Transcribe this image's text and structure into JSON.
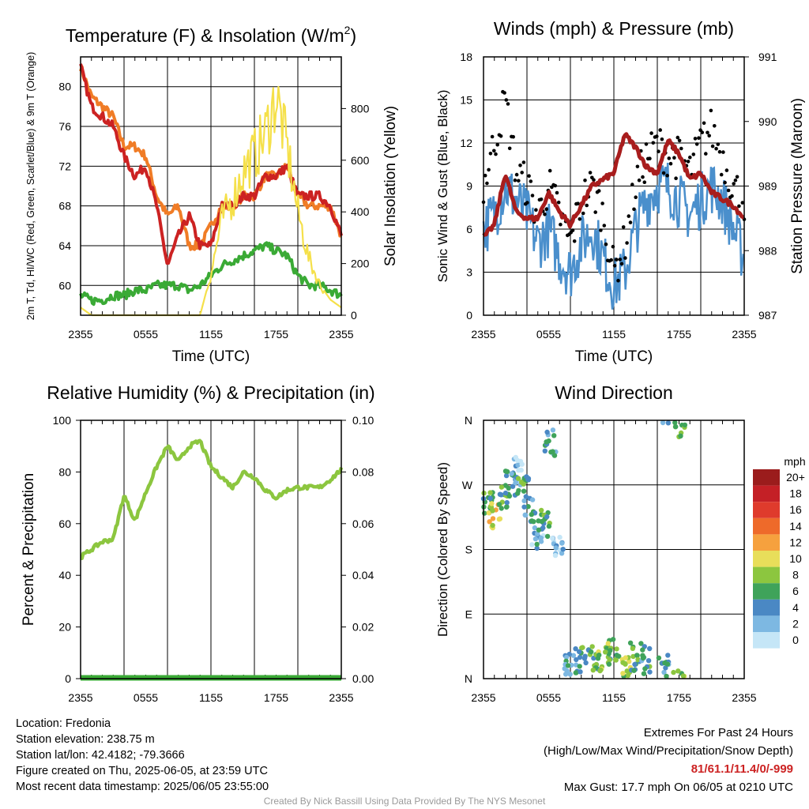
{
  "x_ticks": [
    "2355",
    "0555",
    "1155",
    "1755",
    "2355"
  ],
  "chart_data": [
    {
      "type": "line",
      "title": "Temperature (F) & Insolation (W/m²)",
      "xlabel": "Time (UTC)",
      "ylabel": "2m T, Td, HI/WC (Red, Green, Scarlet/Blue) & 9m T (Orange)",
      "ylabel2": "Solar Insolation (Yellow)",
      "ylim": [
        57,
        83
      ],
      "yticks": [
        60,
        64,
        68,
        72,
        76,
        80
      ],
      "ylim2": [
        0,
        1000
      ],
      "yticks2": [
        0,
        200,
        400,
        600,
        800
      ],
      "x": [
        0,
        1,
        2,
        3,
        4,
        5,
        6,
        7,
        8,
        9,
        10,
        11,
        12,
        13,
        14,
        15,
        16,
        17,
        18,
        19,
        20,
        21,
        22,
        23,
        24
      ],
      "series": [
        {
          "name": "9m T",
          "color": "#f07c26",
          "axis": "left",
          "values": [
            82,
            79,
            78,
            77,
            74,
            74,
            73,
            69,
            67,
            68,
            64,
            64,
            66,
            68,
            68,
            69,
            69,
            71,
            71,
            72,
            69,
            68,
            68,
            68,
            65
          ]
        },
        {
          "name": "2m T",
          "color": "#cc2222",
          "axis": "left",
          "values": [
            82,
            78,
            77,
            76,
            73,
            71,
            72,
            68,
            62,
            65,
            67,
            64,
            64,
            68,
            68,
            69,
            69,
            71,
            71,
            72,
            69,
            69,
            69,
            68,
            65
          ]
        },
        {
          "name": "Td",
          "color": "#3aaa35",
          "axis": "left",
          "values": [
            59,
            58.5,
            58.5,
            59,
            59,
            59.5,
            59.5,
            60,
            60,
            60,
            59.5,
            60,
            61,
            62,
            62.5,
            63,
            63.5,
            64,
            63.5,
            63,
            61,
            60,
            60,
            59.5,
            59
          ]
        },
        {
          "name": "Solar Insolation",
          "color": "#f5e04a",
          "axis": "right",
          "values": [
            30,
            0,
            0,
            0,
            0,
            0,
            0,
            0,
            0,
            0,
            0,
            0,
            160,
            370,
            450,
            560,
            620,
            700,
            850,
            650,
            400,
            220,
            120,
            60,
            30
          ]
        }
      ]
    },
    {
      "type": "line",
      "title": "Winds (mph) & Pressure (mb)",
      "xlabel": "Time (UTC)",
      "ylabel": "Sonic Wind & Gust (Blue, Black)",
      "ylabel2": "Station Pressure (Maroon)",
      "ylim": [
        0,
        18
      ],
      "yticks": [
        0,
        3,
        6,
        9,
        12,
        15,
        18
      ],
      "ylim2": [
        987,
        991
      ],
      "yticks2": [
        987,
        988,
        989,
        990,
        991
      ],
      "x": [
        0,
        1,
        2,
        3,
        4,
        5,
        6,
        7,
        8,
        9,
        10,
        11,
        12,
        13,
        14,
        15,
        16,
        17,
        18,
        19,
        20,
        21,
        22,
        23,
        24
      ],
      "series": [
        {
          "name": "Sonic Wind",
          "color": "#4a8fcc",
          "axis": "left",
          "values": [
            6,
            7,
            9,
            8,
            7,
            5,
            6,
            4,
            3,
            5,
            6,
            4,
            2,
            3,
            6,
            8,
            9,
            9,
            8,
            7,
            8,
            9,
            8,
            6,
            4
          ]
        },
        {
          "name": "Gust",
          "color": "#000000",
          "axis": "left",
          "values": [
            9,
            12,
            15,
            10,
            9,
            7,
            9,
            7,
            5,
            8,
            9,
            7,
            3,
            5,
            9,
            11,
            12,
            11,
            11,
            10,
            12,
            13,
            11,
            9,
            8
          ]
        },
        {
          "name": "Station Pressure",
          "color": "#a81d1d",
          "axis": "right",
          "values": [
            988.2,
            988.4,
            989.2,
            988.6,
            988.5,
            988.5,
            988.9,
            988.6,
            988.4,
            988.7,
            989.0,
            989.1,
            989.2,
            989.8,
            989.6,
            989.3,
            989.2,
            989.7,
            989.5,
            989.1,
            989.2,
            988.9,
            988.8,
            988.7,
            988.5
          ]
        }
      ]
    },
    {
      "type": "line",
      "title": "Relative Humidity (%) & Precipitation (in)",
      "xlabel": "",
      "ylabel": "Percent & Precipitation",
      "ylim": [
        0,
        100
      ],
      "yticks": [
        0,
        20,
        40,
        60,
        80,
        100
      ],
      "ylim2": [
        0,
        0.1
      ],
      "yticks2": [
        "0.00",
        "0.02",
        "0.04",
        "0.06",
        "0.08",
        "0.10"
      ],
      "x": [
        0,
        1,
        2,
        3,
        4,
        5,
        6,
        7,
        8,
        9,
        10,
        11,
        12,
        13,
        14,
        15,
        16,
        17,
        18,
        19,
        20,
        21,
        22,
        23,
        24
      ],
      "series": [
        {
          "name": "Relative Humidity",
          "color": "#8cc63f",
          "axis": "left",
          "values": [
            47,
            50,
            53,
            54,
            71,
            61,
            72,
            82,
            90,
            84,
            90,
            92,
            82,
            78,
            74,
            80,
            78,
            73,
            70,
            73,
            74,
            74,
            74,
            77,
            81
          ]
        },
        {
          "name": "Precipitation",
          "color": "#3aaa35",
          "axis": "right",
          "values": [
            0,
            0,
            0,
            0,
            0,
            0,
            0,
            0,
            0,
            0,
            0,
            0,
            0,
            0,
            0,
            0,
            0,
            0,
            0,
            0,
            0,
            0,
            0,
            0,
            0
          ]
        }
      ]
    },
    {
      "type": "scatter",
      "title": "Wind Direction",
      "ylabel": "Direction (Colored By Speed)",
      "yticks": [
        "N",
        "E",
        "S",
        "W",
        "N"
      ],
      "ylim": [
        0,
        360
      ],
      "legend_title": "mph",
      "legend_labels": [
        "20+",
        "18",
        "16",
        "14",
        "12",
        "10",
        "8",
        "6",
        "4",
        "2",
        "0"
      ],
      "legend_colors": [
        "#9b1c1c",
        "#c42026",
        "#df3b2c",
        "#ee6a2a",
        "#f6a13e",
        "#e8de5a",
        "#8cc63f",
        "#3fa35a",
        "#4a88c4",
        "#7db8e2",
        "#c5e6f7"
      ],
      "clusters": [
        {
          "x": 0.4,
          "dir": 240,
          "speed": 7
        },
        {
          "x": 1.0,
          "dir": 230,
          "speed": 10
        },
        {
          "x": 1.8,
          "dir": 250,
          "speed": 6
        },
        {
          "x": 2.5,
          "dir": 270,
          "speed": 4
        },
        {
          "x": 3.0,
          "dir": 290,
          "speed": 2
        },
        {
          "x": 3.6,
          "dir": 265,
          "speed": 6
        },
        {
          "x": 4.3,
          "dir": 235,
          "speed": 4
        },
        {
          "x": 5.0,
          "dir": 200,
          "speed": 3
        },
        {
          "x": 5.6,
          "dir": 215,
          "speed": 6
        },
        {
          "x": 6.2,
          "dir": 330,
          "speed": 4
        },
        {
          "x": 6.8,
          "dir": 180,
          "speed": 2
        },
        {
          "x": 8.0,
          "dir": 20,
          "speed": 4
        },
        {
          "x": 9.0,
          "dir": 25,
          "speed": 6
        },
        {
          "x": 10.0,
          "dir": 30,
          "speed": 6
        },
        {
          "x": 11.0,
          "dir": 25,
          "speed": 8
        },
        {
          "x": 12.0,
          "dir": 40,
          "speed": 7
        },
        {
          "x": 13.0,
          "dir": 20,
          "speed": 9
        },
        {
          "x": 14.0,
          "dir": 30,
          "speed": 6
        },
        {
          "x": 15.0,
          "dir": 25,
          "speed": 5
        },
        {
          "x": 16.5,
          "dir": 15,
          "speed": 4
        },
        {
          "x": 18.0,
          "dir": 355,
          "speed": 7
        }
      ]
    }
  ],
  "info": {
    "location": "Location: Fredonia",
    "elevation": "Station elevation: 238.75 m",
    "latlon": "Station lat/lon: 42.4182; -79.3666",
    "created": "Figure created on Thu, 2025-06-05, at 23:59 UTC",
    "recent": "Most recent data timestamp: 2025/06/05 23:55:00"
  },
  "extremes": {
    "title": "Extremes For Past 24 Hours",
    "subtitle": "(High/Low/Max Wind/Precipitation/Snow Depth)",
    "values": "81/61.1/11.4/0/-999",
    "values_color": "#cc2222",
    "gust": "Max Gust: 17.7 mph On 06/05 at 0210 UTC"
  },
  "footer": "Created By Nick Bassill Using Data Provided By The NYS Mesonet"
}
